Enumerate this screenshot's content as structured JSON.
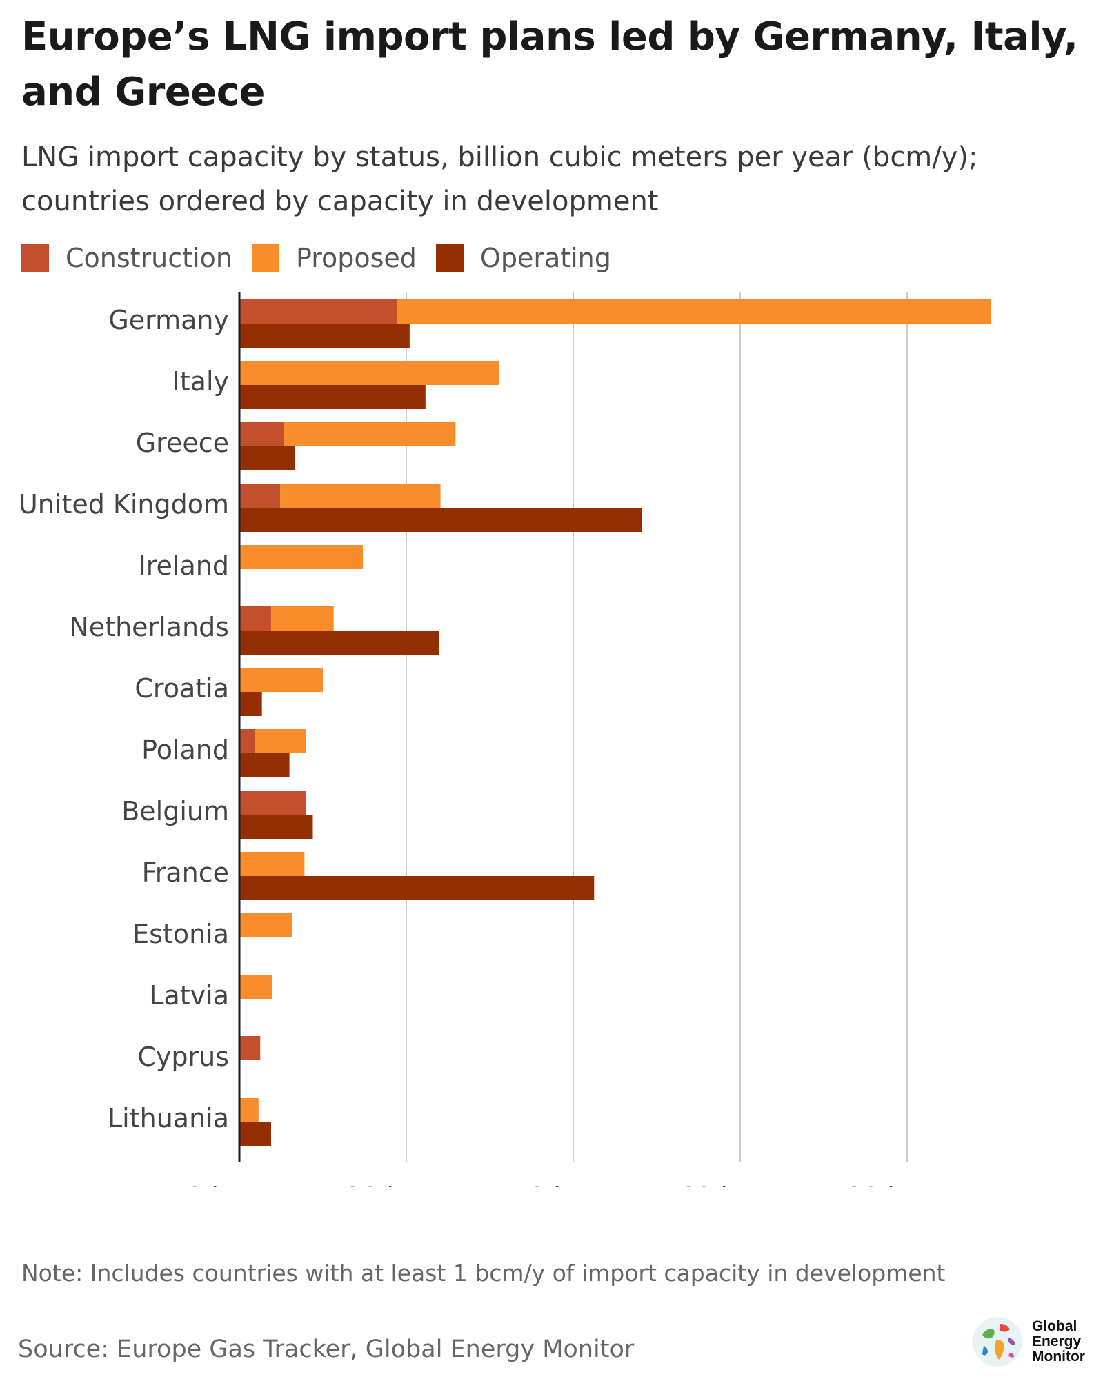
{
  "title": "Europe’s LNG import plans led by Germany, Italy, and Greece",
  "subtitle": "LNG import capacity by status, billion cubic meters per year (bcm/y); countries ordered by capacity in development",
  "legend": {
    "construction": "Construction",
    "proposed": "Proposed",
    "operating": "Operating"
  },
  "colors": {
    "construction": "#c2502d",
    "proposed": "#f98d2b",
    "operating": "#932f00",
    "grid": "#cccccc",
    "axis": "#1a1a1a"
  },
  "chart_data": {
    "type": "bar",
    "orientation": "horizontal",
    "stacked_series": [
      "Construction",
      "Proposed"
    ],
    "categories": [
      "Germany",
      "Italy",
      "Greece",
      "United Kingdom",
      "Ireland",
      "Netherlands",
      "Croatia",
      "Poland",
      "Belgium",
      "France",
      "Estonia",
      "Latvia",
      "Cyprus",
      "Lithuania"
    ],
    "series": [
      {
        "name": "Construction",
        "values": [
          18.9,
          0,
          5.3,
          4.9,
          0,
          3.8,
          0,
          1.9,
          8.0,
          0,
          0,
          0,
          2.5,
          0
        ]
      },
      {
        "name": "Proposed",
        "values": [
          71.1,
          31.1,
          20.6,
          19.2,
          14.8,
          7.5,
          10.0,
          6.1,
          0,
          7.8,
          6.3,
          3.9,
          0,
          2.3
        ]
      },
      {
        "name": "Operating",
        "values": [
          20.4,
          22.3,
          6.7,
          48.2,
          0,
          23.9,
          2.7,
          6.0,
          8.8,
          42.5,
          0,
          0,
          0,
          3.8
        ]
      }
    ],
    "xlim": [
      0,
      90
    ],
    "xticks": [
      0,
      20,
      40,
      60,
      80
    ],
    "tick_labels": [
      "0 bcm/y",
      "20 bcm/y",
      "40 bcm/y",
      "60 bcm/y",
      "80 bcm/y"
    ],
    "grid": "vertical",
    "legend_position": "top-left",
    "xlabel": "",
    "ylabel": ""
  },
  "note": "Note: Includes countries with at least 1 bcm/y of import capacity in development",
  "source": "Source: Europe Gas Tracker, Global Energy Monitor",
  "logo": {
    "line1": "Global",
    "line2": "Energy",
    "line3": "Monitor"
  }
}
